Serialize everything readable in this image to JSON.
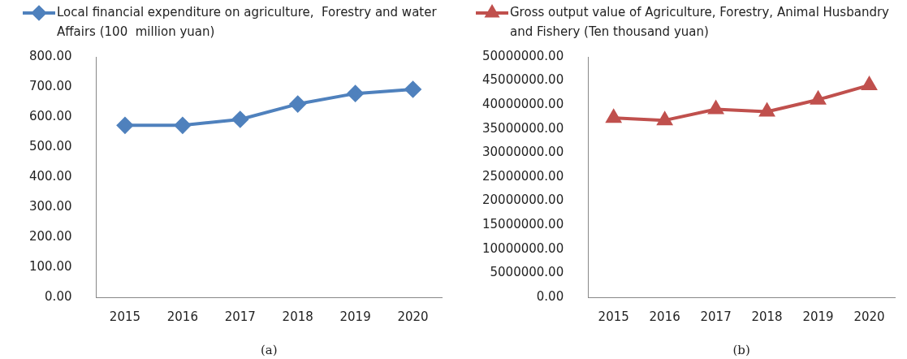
{
  "chart_data": [
    {
      "type": "line",
      "categories": [
        "2015",
        "2016",
        "2017",
        "2018",
        "2019",
        "2020"
      ],
      "series": [
        {
          "name": "Local financial expenditure on agriculture,  Forestry and water Affairs (100  million yuan)",
          "color": "#4f81bd",
          "values": [
            572,
            572,
            592,
            643,
            678,
            692
          ]
        }
      ],
      "ylim": [
        0,
        800
      ],
      "yticks": [
        {
          "value": 0,
          "label": "0.00"
        },
        {
          "value": 100,
          "label": "100.00"
        },
        {
          "value": 200,
          "label": "200.00"
        },
        {
          "value": 300,
          "label": "300.00"
        },
        {
          "value": 400,
          "label": "400.00"
        },
        {
          "value": 500,
          "label": "500.00"
        },
        {
          "value": 600,
          "label": "600.00"
        },
        {
          "value": 700,
          "label": "700.00"
        },
        {
          "value": 800,
          "label": "800.00"
        }
      ],
      "grid": false,
      "legend": "top",
      "marker": "diamond",
      "line_style": "solid",
      "annotations": [
        "(a)"
      ]
    },
    {
      "type": "line",
      "categories": [
        "2015",
        "2016",
        "2017",
        "2018",
        "2019",
        "2020"
      ],
      "series": [
        {
          "name": "Gross output value of Agriculture, Forestry, Animal Husbandry and Fishery (Ten thousand yuan)",
          "color": "#c0504d",
          "values": [
            37300000,
            36800000,
            39100000,
            38600000,
            41100000,
            44100000
          ]
        }
      ],
      "ylim": [
        0,
        50000000
      ],
      "yticks": [
        {
          "value": 0,
          "label": "0.00"
        },
        {
          "value": 5000000,
          "label": "5000000.00"
        },
        {
          "value": 10000000,
          "label": "10000000.00"
        },
        {
          "value": 15000000,
          "label": "15000000.00"
        },
        {
          "value": 20000000,
          "label": "20000000.00"
        },
        {
          "value": 25000000,
          "label": "25000000.00"
        },
        {
          "value": 30000000,
          "label": "30000000.00"
        },
        {
          "value": 35000000,
          "label": "35000000.00"
        },
        {
          "value": 40000000,
          "label": "40000000.00"
        },
        {
          "value": 45000000,
          "label": "45000000.00"
        },
        {
          "value": 50000000,
          "label": "50000000.00"
        }
      ],
      "grid": false,
      "legend": "top",
      "marker": "triangle",
      "line_style": "solid",
      "annotations": [
        "(b)"
      ]
    }
  ]
}
